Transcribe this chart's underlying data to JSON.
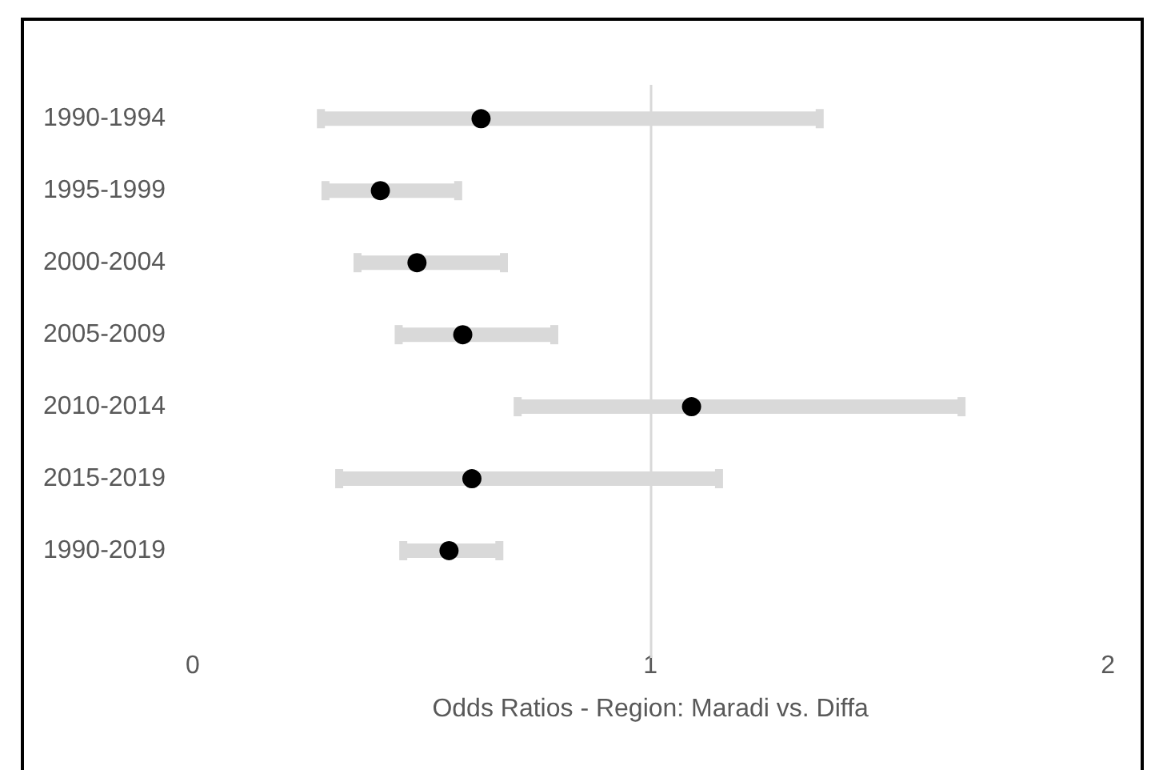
{
  "chart_data": {
    "type": "scatter",
    "orientation": "horizontal",
    "xlabel": "Odds Ratios - Region: Maradi vs. Diffa",
    "categories": [
      "1990-1994",
      "1995-1999",
      "2000-2004",
      "2005-2009",
      "2010-2014",
      "2015-2019",
      "1990-2019"
    ],
    "series": [
      {
        "color": "#000000",
        "values": [
          0.63,
          0.41,
          0.49,
          0.59,
          1.09,
          0.61,
          0.56
        ],
        "errors": [
          [
            0.28,
            1.37
          ],
          [
            0.29,
            0.58
          ],
          [
            0.36,
            0.68
          ],
          [
            0.45,
            0.79
          ],
          [
            0.71,
            1.68
          ],
          [
            0.32,
            1.15
          ],
          [
            0.46,
            0.67
          ]
        ]
      }
    ],
    "marker": "circle",
    "xlim": [
      0,
      2
    ],
    "xticks": [
      0,
      1,
      2
    ],
    "ref_lines": [
      {
        "axis": "x",
        "value": 1,
        "color": "#d9d9d9"
      }
    ]
  }
}
